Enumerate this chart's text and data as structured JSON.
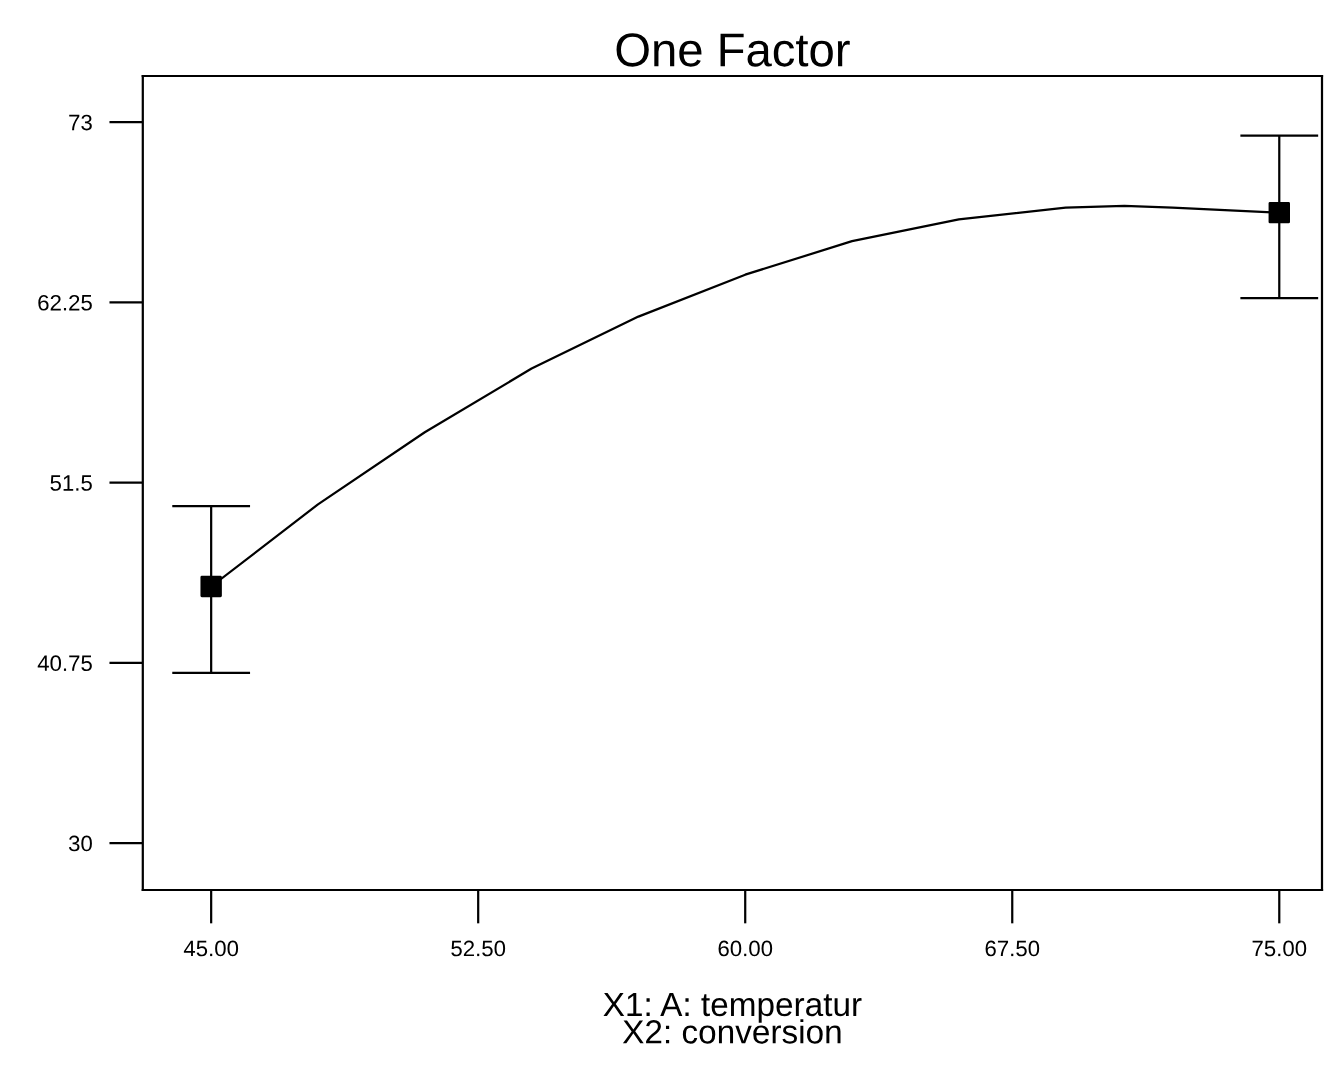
{
  "chart_data": {
    "type": "scatter",
    "title": "One Factor",
    "xlabel": "X1: A: temperatur\nX2: conversion",
    "series": [
      {
        "type": "line",
        "color": "#000000",
        "x": [
          45,
          48,
          51,
          54,
          57,
          60,
          63,
          66,
          69,
          70.65,
          72,
          75
        ],
        "values": [
          45.3,
          50.2,
          54.5,
          58.3,
          61.4,
          63.9,
          65.9,
          67.2,
          67.9,
          68.0,
          67.9,
          67.6
        ],
        "marker": "none"
      },
      {
        "color": "#000000",
        "x": [
          45,
          75
        ],
        "values": [
          45.3,
          67.6
        ],
        "errors": [
          [
            40.15,
            50.1
          ],
          [
            62.5,
            72.2
          ]
        ],
        "marker": "square"
      }
    ],
    "xlim": [
      43.08,
      76.2
    ],
    "ylim": [
      27.2,
      75.75
    ],
    "xticks": [
      {
        "value": 45,
        "label": "45.00"
      },
      {
        "value": 52.5,
        "label": "52.50"
      },
      {
        "value": 60,
        "label": "60.00"
      },
      {
        "value": 67.5,
        "label": "67.50"
      },
      {
        "value": 75,
        "label": "75.00"
      }
    ],
    "yticks": [
      30,
      40.75,
      51.5,
      62.25,
      73
    ],
    "grid": false
  }
}
